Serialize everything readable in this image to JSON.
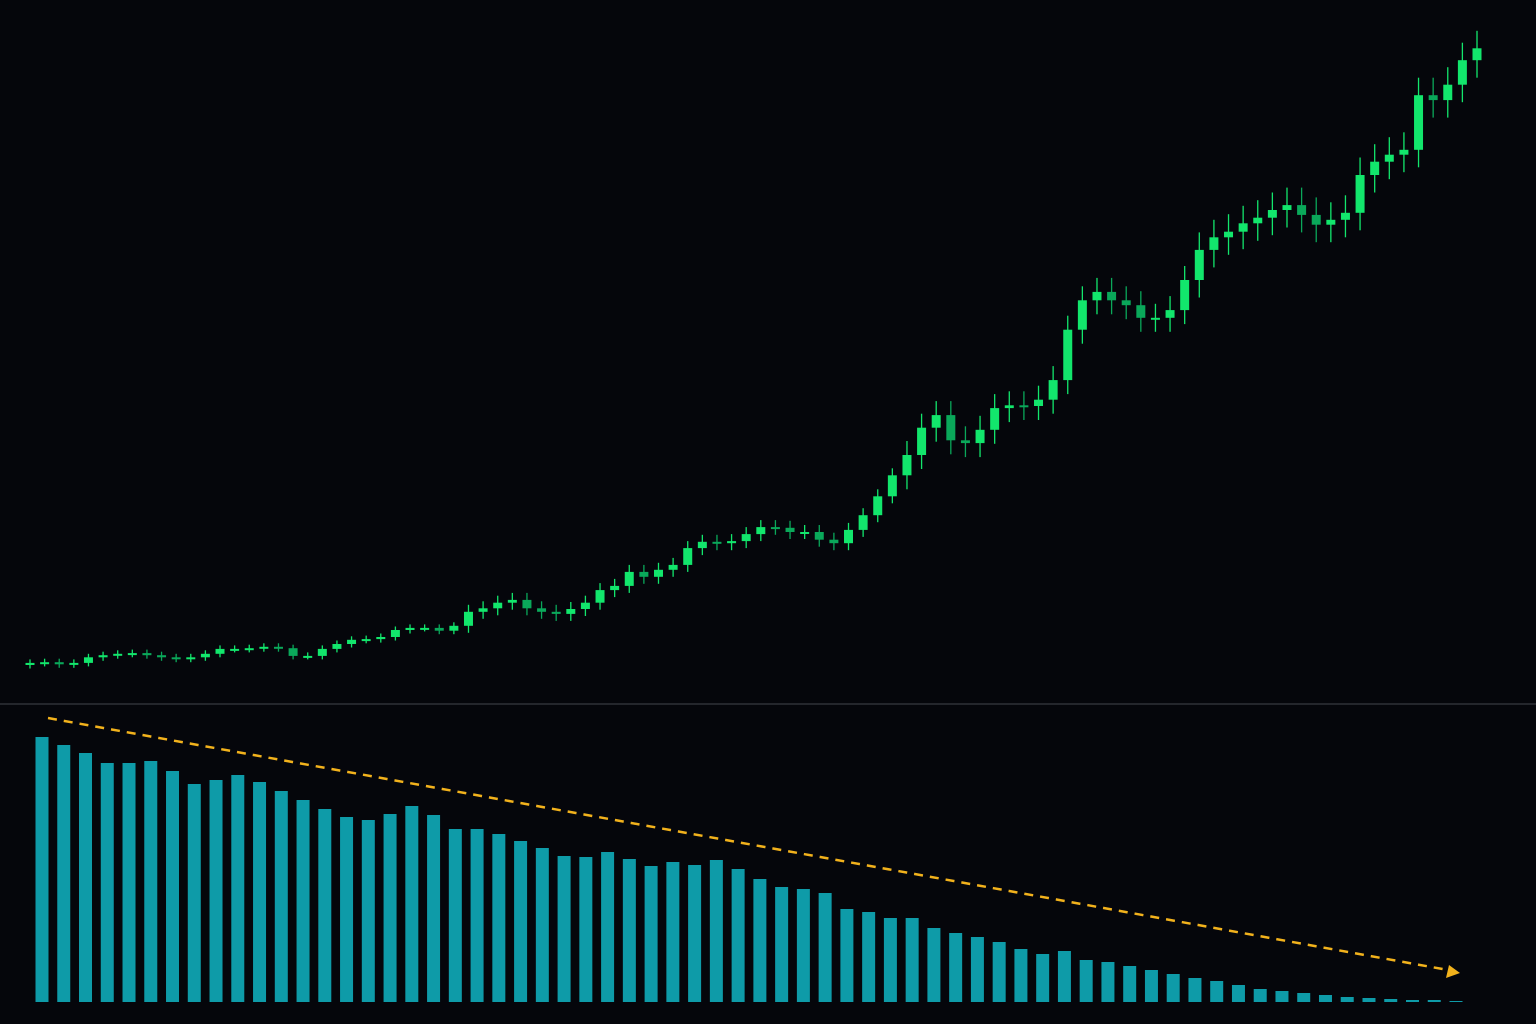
{
  "chart_data": [
    {
      "type": "candlestick",
      "ylim": [
        0,
        100
      ],
      "up_color": "#12e66c",
      "down_color": "#0aa85a",
      "open": [
        5.0,
        5.3,
        5.4,
        5.1,
        5.3,
        6.1,
        6.4,
        6.6,
        6.7,
        6.4,
        6.1,
        5.9,
        6.1,
        6.6,
        7.3,
        7.3,
        7.4,
        7.6,
        7.4,
        6.3,
        6.3,
        7.3,
        8.0,
        8.6,
        8.7,
        9.0,
        10.0,
        10.3,
        10.3,
        9.9,
        10.6,
        12.6,
        13.1,
        13.9,
        14.3,
        13.1,
        12.6,
        12.3,
        13.0,
        13.9,
        15.7,
        16.3,
        18.3,
        17.6,
        18.6,
        19.3,
        21.7,
        22.6,
        22.4,
        22.7,
        23.7,
        24.7,
        24.6,
        24.0,
        24.0,
        22.9,
        22.4,
        24.3,
        26.4,
        29.1,
        32.1,
        35.0,
        38.9,
        40.7,
        37.1,
        36.7,
        38.6,
        41.7,
        42.1,
        42.0,
        42.9,
        45.7,
        52.9,
        57.1,
        58.3,
        57.1,
        56.4,
        54.6,
        54.6,
        55.7,
        60.0,
        64.3,
        66.1,
        66.9,
        68.1,
        68.9,
        70.0,
        70.7,
        69.3,
        67.9,
        68.6,
        69.6,
        75.0,
        76.9,
        77.9,
        78.6,
        86.4,
        85.7,
        87.9,
        91.4
      ],
      "high": [
        5.8,
        5.9,
        5.9,
        5.8,
        6.6,
        6.9,
        7.1,
        7.2,
        7.2,
        6.9,
        6.6,
        6.6,
        7.1,
        7.8,
        7.8,
        7.9,
        8.1,
        8.1,
        7.9,
        6.8,
        7.8,
        8.5,
        9.1,
        9.2,
        9.5,
        10.5,
        10.8,
        10.8,
        10.8,
        11.1,
        13.6,
        14.1,
        14.9,
        15.3,
        15.3,
        14.1,
        13.6,
        14.0,
        14.9,
        16.7,
        17.3,
        19.3,
        19.3,
        19.6,
        20.3,
        22.7,
        23.6,
        23.6,
        23.7,
        24.7,
        25.7,
        25.7,
        25.6,
        25.0,
        25.0,
        23.9,
        25.3,
        27.4,
        30.1,
        33.1,
        37.0,
        40.9,
        42.7,
        42.7,
        39.1,
        40.6,
        43.7,
        44.1,
        44.1,
        44.9,
        47.7,
        54.9,
        59.1,
        60.3,
        60.3,
        59.1,
        58.4,
        56.6,
        57.7,
        62.0,
        66.8,
        68.6,
        69.4,
        70.6,
        71.4,
        72.5,
        73.2,
        73.2,
        71.8,
        71.1,
        72.1,
        77.5,
        79.4,
        80.4,
        81.1,
        88.9,
        88.9,
        90.4,
        93.9,
        95.6
      ],
      "low": [
        4.5,
        4.8,
        4.6,
        4.6,
        4.8,
        5.6,
        5.9,
        6.1,
        5.9,
        5.6,
        5.4,
        5.4,
        5.6,
        6.1,
        6.8,
        6.8,
        6.9,
        6.9,
        5.8,
        5.8,
        5.8,
        6.8,
        7.5,
        8.1,
        8.2,
        8.5,
        9.5,
        9.8,
        9.4,
        9.4,
        9.6,
        11.6,
        12.1,
        12.9,
        12.1,
        11.6,
        11.3,
        11.3,
        12.0,
        12.9,
        14.7,
        15.3,
        16.6,
        16.6,
        17.6,
        18.3,
        20.7,
        21.4,
        21.4,
        21.7,
        22.7,
        23.6,
        23.0,
        23.0,
        21.9,
        21.4,
        21.4,
        23.3,
        25.4,
        28.1,
        30.1,
        33.0,
        36.9,
        35.1,
        34.7,
        34.7,
        36.6,
        39.7,
        40.0,
        40.0,
        40.9,
        43.7,
        50.9,
        55.1,
        55.1,
        54.4,
        52.6,
        52.6,
        52.6,
        53.7,
        57.5,
        61.8,
        63.6,
        64.4,
        65.6,
        66.4,
        67.5,
        66.8,
        65.4,
        65.4,
        66.1,
        67.1,
        72.5,
        74.4,
        75.4,
        76.1,
        83.2,
        83.2,
        85.4,
        88.9
      ],
      "close": [
        5.3,
        5.4,
        5.1,
        5.3,
        6.1,
        6.4,
        6.6,
        6.7,
        6.4,
        6.1,
        5.9,
        6.1,
        6.6,
        7.3,
        7.3,
        7.4,
        7.6,
        7.4,
        6.3,
        6.3,
        7.3,
        8.0,
        8.6,
        8.7,
        9.0,
        10.0,
        10.3,
        10.3,
        9.9,
        10.6,
        12.6,
        13.1,
        13.9,
        14.3,
        13.1,
        12.6,
        12.3,
        13.0,
        13.9,
        15.7,
        16.3,
        18.3,
        17.6,
        18.6,
        19.3,
        21.7,
        22.6,
        22.4,
        22.7,
        23.7,
        24.7,
        24.6,
        24.0,
        24.0,
        22.9,
        22.4,
        24.3,
        26.4,
        29.1,
        32.1,
        35.0,
        38.9,
        40.7,
        37.1,
        36.7,
        38.6,
        41.7,
        42.1,
        42.0,
        42.9,
        45.7,
        52.9,
        57.1,
        58.3,
        57.1,
        56.4,
        54.6,
        54.6,
        55.7,
        60.0,
        64.3,
        66.1,
        66.9,
        68.1,
        68.9,
        70.0,
        70.7,
        69.3,
        67.9,
        68.6,
        69.6,
        75.0,
        76.9,
        77.9,
        78.6,
        86.4,
        85.7,
        87.9,
        91.4,
        93.1
      ]
    },
    {
      "type": "bar",
      "ylim": [
        0,
        280
      ],
      "color": "#0e9ba8",
      "trend_color": "#f2b21c",
      "values": [
        265,
        257,
        249,
        239,
        239,
        241,
        231,
        218,
        222,
        227,
        220,
        211,
        202,
        193,
        185,
        182,
        188,
        196,
        187,
        173,
        173,
        168,
        161,
        154,
        146,
        145,
        150,
        143,
        136,
        140,
        137,
        142,
        133,
        123,
        115,
        113,
        109,
        93,
        90,
        84,
        84,
        74,
        69,
        65,
        60,
        53,
        48,
        51,
        42,
        40,
        36,
        32,
        28,
        24,
        21,
        17,
        13,
        11,
        9,
        7,
        5,
        4,
        3,
        2,
        2,
        1
      ]
    }
  ]
}
